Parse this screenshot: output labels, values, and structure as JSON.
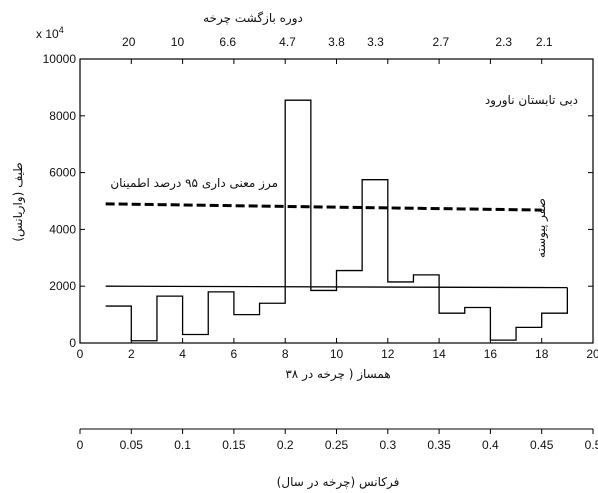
{
  "chart_data": {
    "type": "line",
    "title_top_axis": "دوره بازگشت چرخه",
    "xlabel": "همساز ( چرخه در ۳۸",
    "xlabel2": "فرکانس (چرخه در سال)",
    "ylabel": "طیف (واریانس)",
    "y_multiplier": "x 10",
    "y_multiplier_exp": "4",
    "xlim": [
      0,
      20
    ],
    "ylim": [
      0,
      10000
    ],
    "x_ticks": [
      "0",
      "2",
      "4",
      "6",
      "8",
      "10",
      "12",
      "14",
      "16",
      "18",
      "20"
    ],
    "y_ticks": [
      "0",
      "2000",
      "4000",
      "6000",
      "8000",
      "10000"
    ],
    "top_ticks": [
      {
        "x": 1.9,
        "label": "20"
      },
      {
        "x": 3.8,
        "label": "10"
      },
      {
        "x": 5.76,
        "label": "6.6"
      },
      {
        "x": 8.09,
        "label": "4.7"
      },
      {
        "x": 10.0,
        "label": "3.8"
      },
      {
        "x": 11.52,
        "label": "3.3"
      },
      {
        "x": 14.07,
        "label": "2.7"
      },
      {
        "x": 16.52,
        "label": "2.3"
      },
      {
        "x": 18.1,
        "label": "2.1"
      }
    ],
    "freq_ticks": [
      "0",
      "0.05",
      "0.1",
      "0.15",
      "0.2",
      "0.25",
      "0.3",
      "0.35",
      "0.4",
      "0.45",
      "0.5"
    ],
    "series": [
      {
        "name": "دبی تابستان ناورود",
        "style": "step",
        "x": [
          1,
          2,
          3,
          4,
          5,
          6,
          7,
          8,
          9,
          10,
          11,
          12,
          13,
          14,
          15,
          16,
          17,
          18,
          19
        ],
        "values": [
          1300,
          80,
          1650,
          300,
          1800,
          1000,
          1400,
          8550,
          1850,
          2550,
          5750,
          2150,
          2400,
          1050,
          1250,
          100,
          550,
          1050,
          1950
        ]
      },
      {
        "name": "مرز معنی داری ۹۵ درصد اطمینان",
        "style": "dashed",
        "x": [
          1,
          18
        ],
        "values": [
          4900,
          4680
        ]
      },
      {
        "name": "صفر پیوسته",
        "style": "solid",
        "x": [
          1,
          19
        ],
        "values": [
          2000,
          1950
        ]
      }
    ],
    "annotations": {
      "series_label": "دبی تابستان ناورود",
      "significance_label": "مرز معنی داری ۹۵ درصد اطمینان",
      "null_label": "صفر پیوسته"
    },
    "grid": false,
    "colors": {
      "line": "#000000",
      "background": "#ffffff"
    }
  }
}
